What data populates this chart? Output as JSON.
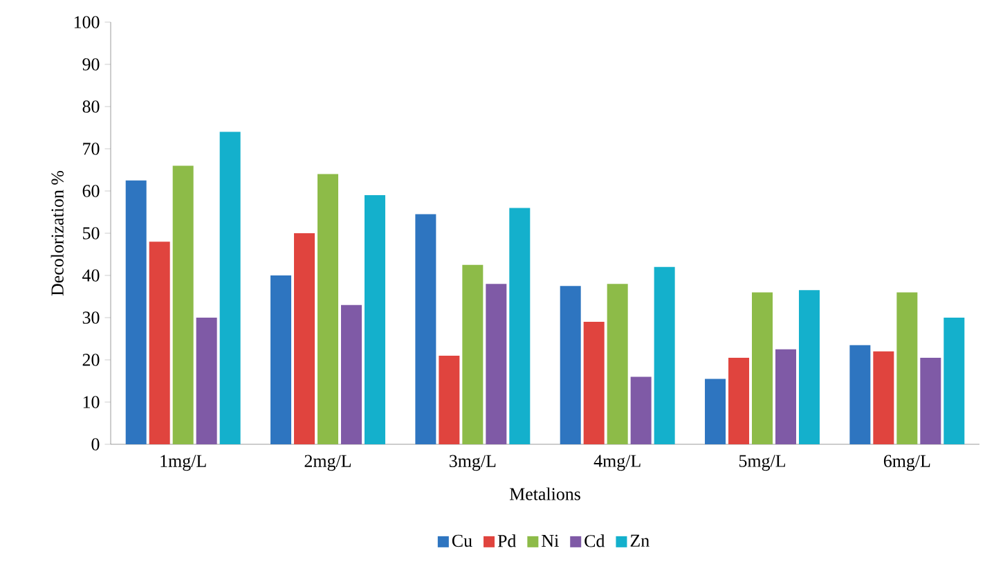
{
  "chart_data": {
    "type": "bar",
    "xlabel": "Metalions",
    "ylabel": "Decolorization %",
    "categories": [
      "1mg/L",
      "2mg/L",
      "3mg/L",
      "4mg/L",
      "5mg/L",
      "6mg/L"
    ],
    "series": [
      {
        "name": "Cu",
        "color": "#2e75c0",
        "values": [
          62.5,
          40,
          54.5,
          37.5,
          15.5,
          23.5
        ]
      },
      {
        "name": "Pd",
        "color": "#e0443e",
        "values": [
          48,
          50,
          21,
          29,
          20.5,
          22
        ]
      },
      {
        "name": "Ni",
        "color": "#8dbb48",
        "values": [
          66,
          64,
          42.5,
          38,
          36,
          36
        ]
      },
      {
        "name": "Cd",
        "color": "#7f5aa6",
        "values": [
          30,
          33,
          38,
          16,
          22.5,
          20.5
        ]
      },
      {
        "name": "Zn",
        "color": "#14b0cc",
        "values": [
          74,
          59,
          56,
          42,
          36.5,
          30
        ]
      }
    ],
    "ylim": [
      0,
      100
    ],
    "yticks": [
      0,
      10,
      20,
      30,
      40,
      50,
      60,
      70,
      80,
      90,
      100
    ],
    "grid": false,
    "legend": "bottom"
  }
}
